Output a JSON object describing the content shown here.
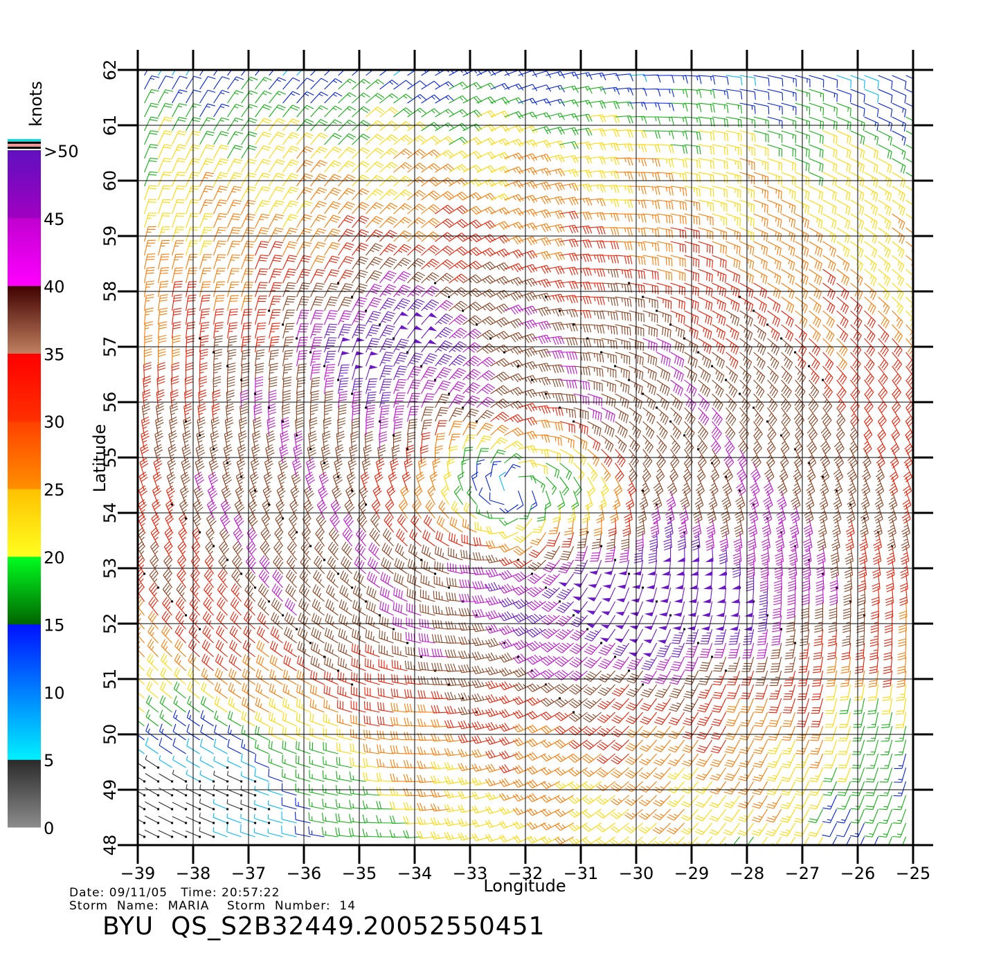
{
  "map": {
    "lon_range": [
      -39,
      -25
    ],
    "lat_range": [
      48,
      62
    ],
    "lon_ticks": [
      "−39",
      "−38",
      "−37",
      "−36",
      "−35",
      "−34",
      "−33",
      "−32",
      "−31",
      "−30",
      "−29",
      "−28",
      "−27",
      "−26",
      "−25"
    ],
    "lat_ticks": [
      "48",
      "49",
      "50",
      "51",
      "52",
      "53",
      "54",
      "55",
      "56",
      "57",
      "58",
      "59",
      "60",
      "61",
      "62"
    ],
    "xlabel": "Longitude",
    "ylabel": "Latitude",
    "grid": true,
    "storm_center": {
      "lon": -32.2,
      "lat": 54.4
    },
    "wind_field": "cyclonic barbs around storm center, strongest winds (40-50 knots) south-east and west of center, weak winds (0-15 knots) south-west corner"
  },
  "colorbar": {
    "unit_label": "knots",
    "labels": [
      "0",
      "5",
      "10",
      "15",
      "20",
      "25",
      "30",
      "35",
      "40",
      "45",
      ">50"
    ],
    "bands": [
      {
        "from": 0,
        "to": 5,
        "colors": [
          "#8c8c8c",
          "#2a2a2a"
        ]
      },
      {
        "from": 5,
        "to": 10,
        "colors": [
          "#00f0ff",
          "#0080ff"
        ]
      },
      {
        "from": 10,
        "to": 15,
        "colors": [
          "#0080ff",
          "#0010ff"
        ]
      },
      {
        "from": 15,
        "to": 20,
        "colors": [
          "#006400",
          "#00ff20"
        ]
      },
      {
        "from": 20,
        "to": 25,
        "colors": [
          "#ffff20",
          "#ffc000"
        ]
      },
      {
        "from": 25,
        "to": 30,
        "colors": [
          "#ff9000",
          "#ff4000"
        ]
      },
      {
        "from": 30,
        "to": 35,
        "colors": [
          "#ff3000",
          "#ff0000"
        ]
      },
      {
        "from": 35,
        "to": 40,
        "colors": [
          "#c08060",
          "#400000"
        ]
      },
      {
        "from": 40,
        "to": 45,
        "colors": [
          "#ff00ff",
          "#c000d0"
        ]
      },
      {
        "from": 45,
        "to": 50,
        "colors": [
          "#a000c0",
          "#6010c0"
        ]
      }
    ],
    "top_strip_colors": [
      "#00e0e0",
      "#000000",
      "#ff9090",
      "#000000"
    ]
  },
  "footer": {
    "date_line": "Date: 09/11/05   Time: 20:57:22",
    "storm_line": "Storm  Name:  MARIA    Storm  Number:  14",
    "id_line": "BYU  QS_S2B32449.20052550451"
  }
}
